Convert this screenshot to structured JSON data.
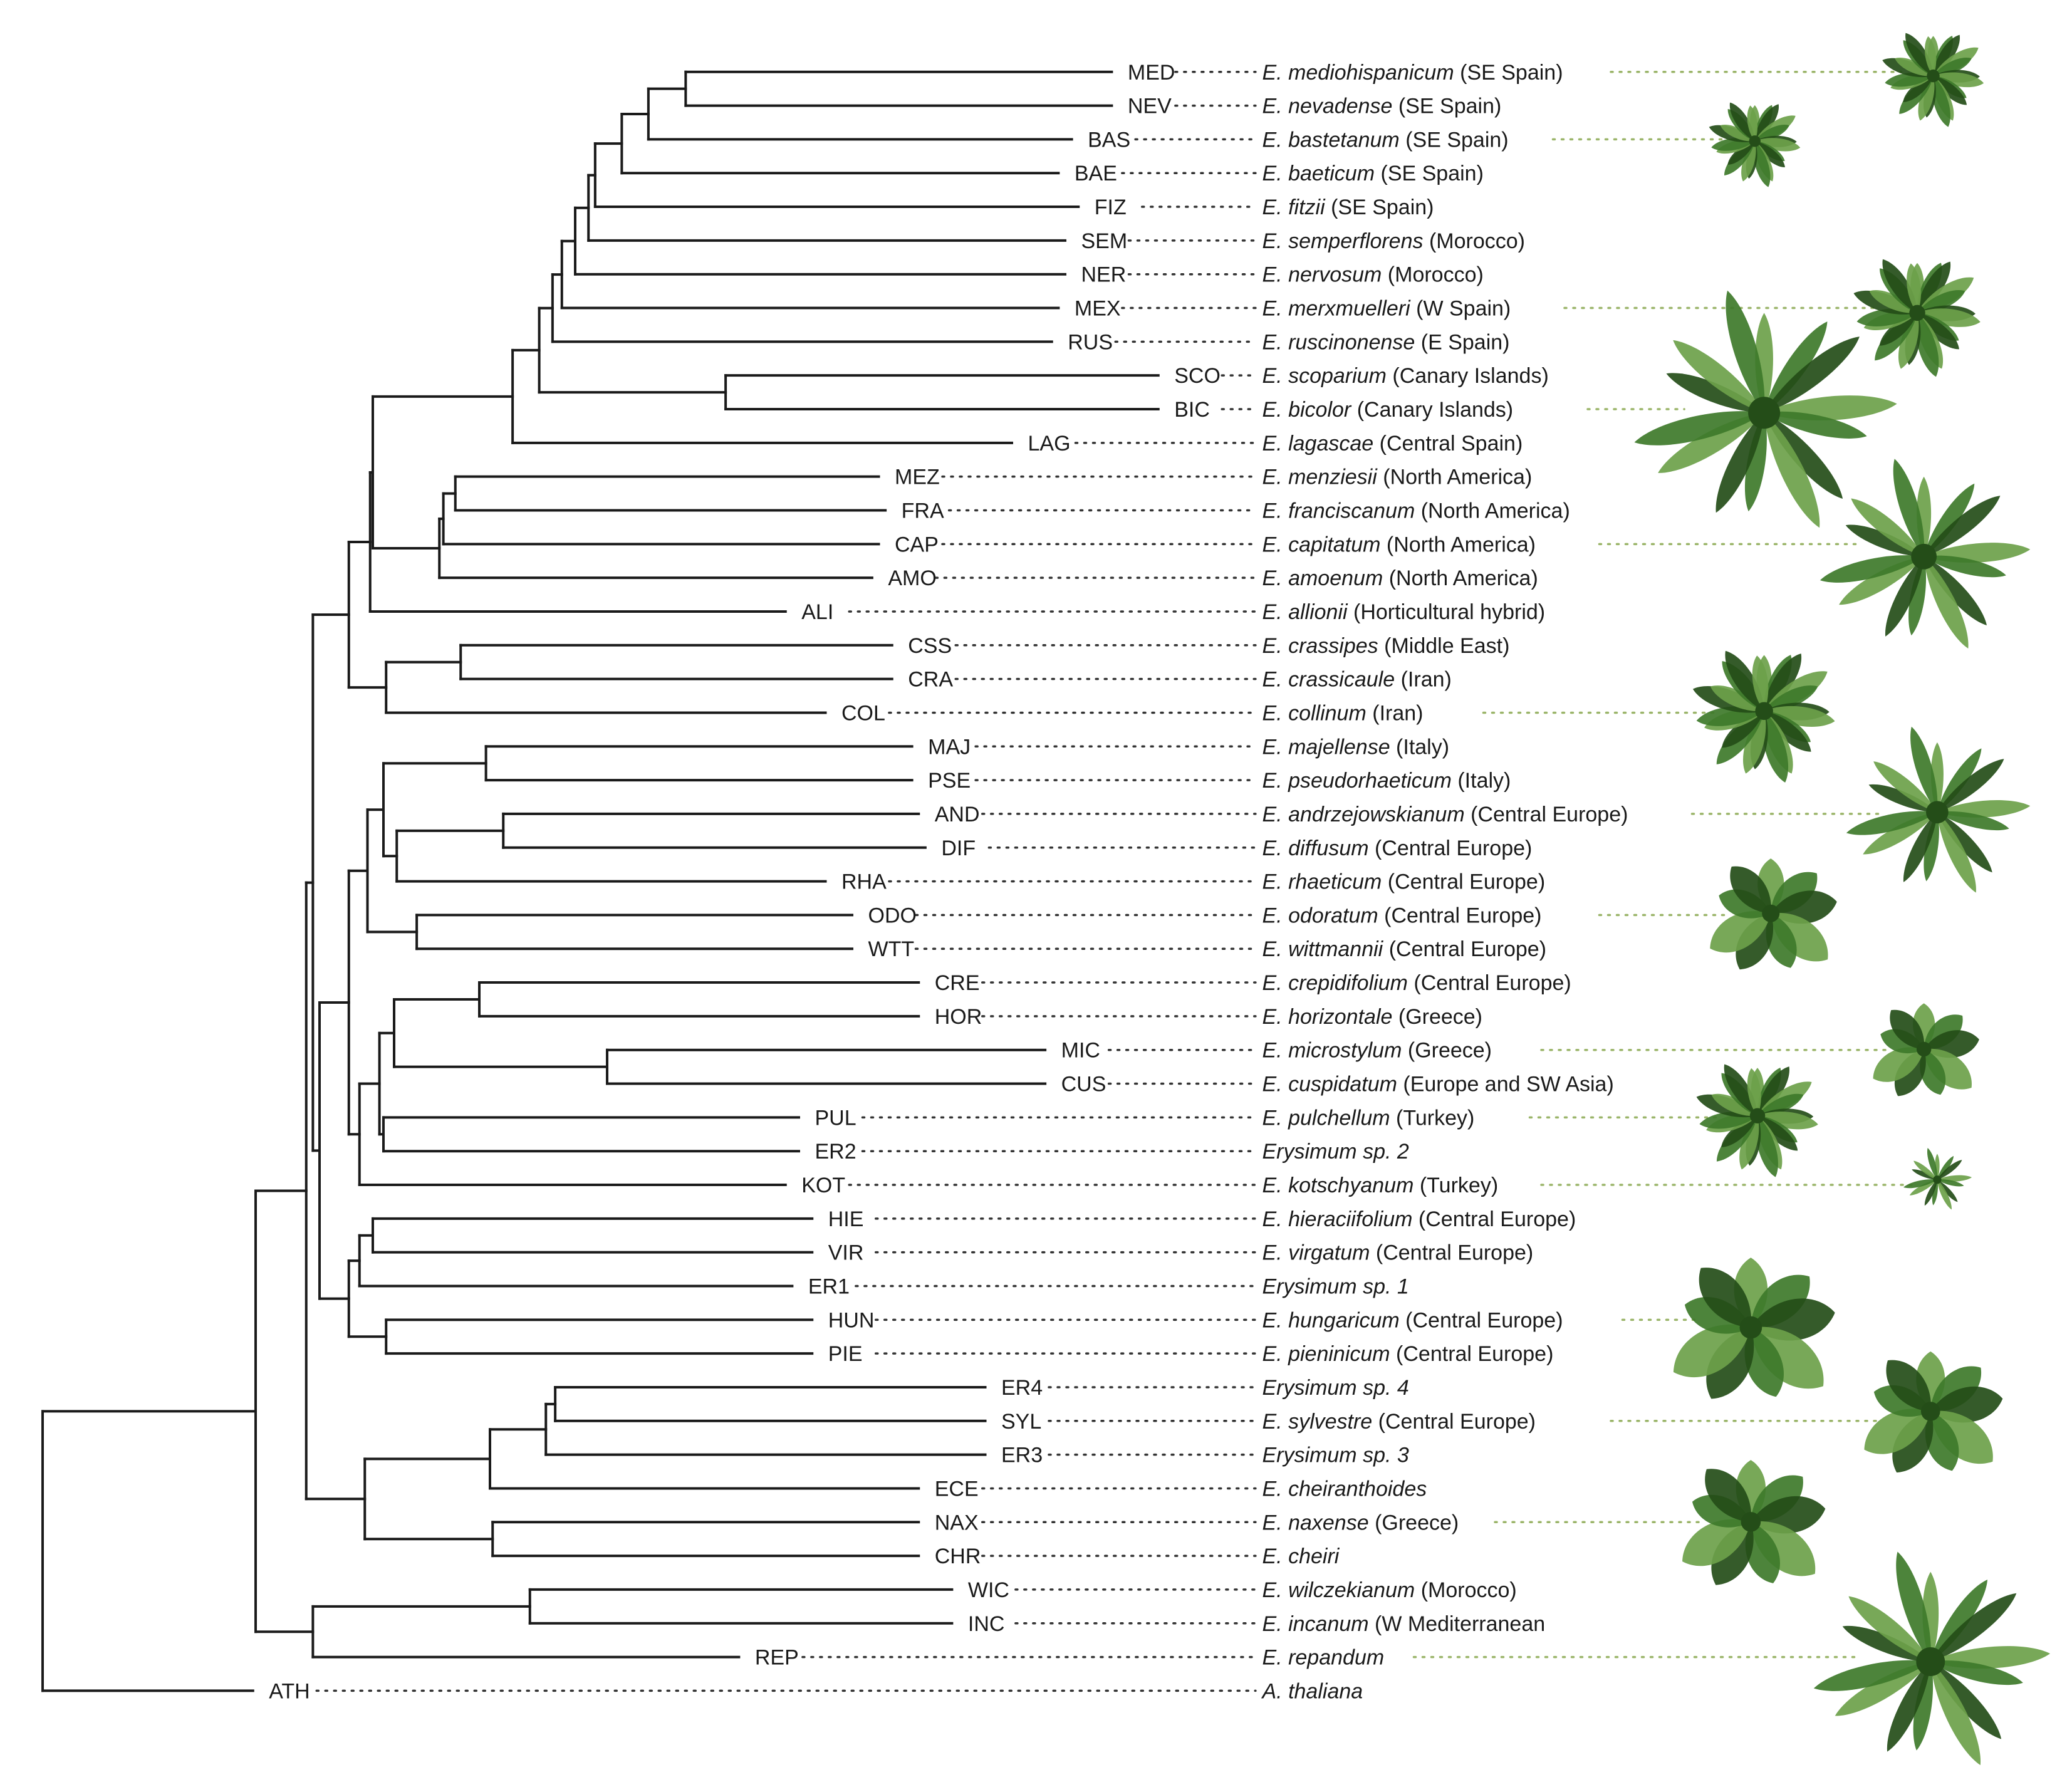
{
  "taxa": [
    {
      "code": "MED",
      "genus": "E.",
      "epithet": "mediohispanicum",
      "region": "(SE Spain)"
    },
    {
      "code": "NEV",
      "genus": "E.",
      "epithet": "nevadense",
      "region": "(SE Spain)"
    },
    {
      "code": "BAS",
      "genus": "E.",
      "epithet": "bastetanum",
      "region": "(SE Spain)"
    },
    {
      "code": "BAE",
      "genus": "E.",
      "epithet": "baeticum",
      "region": "(SE Spain)"
    },
    {
      "code": "FIZ",
      "genus": "E.",
      "epithet": "fitzii",
      "region": "(SE Spain)"
    },
    {
      "code": "SEM",
      "genus": "E.",
      "epithet": "semperflorens",
      "region": "(Morocco)"
    },
    {
      "code": "NER",
      "genus": "E.",
      "epithet": "nervosum",
      "region": "(Morocco)"
    },
    {
      "code": "MEX",
      "genus": "E.",
      "epithet": "merxmuelleri",
      "region": "(W Spain)"
    },
    {
      "code": "RUS",
      "genus": "E.",
      "epithet": "ruscinonense",
      "region": "(E Spain)"
    },
    {
      "code": "SCO",
      "genus": "E.",
      "epithet": "scoparium",
      "region": "(Canary Islands)"
    },
    {
      "code": "BIC",
      "genus": "E.",
      "epithet": "bicolor",
      "region": "(Canary Islands)"
    },
    {
      "code": "LAG",
      "genus": "E.",
      "epithet": "lagascae",
      "region": "(Central Spain)"
    },
    {
      "code": "MEZ",
      "genus": "E.",
      "epithet": "menziesii",
      "region": "(North America)"
    },
    {
      "code": "FRA",
      "genus": "E.",
      "epithet": "franciscanum",
      "region": "(North America)"
    },
    {
      "code": "CAP",
      "genus": "E.",
      "epithet": "capitatum",
      "region": "(North America)"
    },
    {
      "code": "AMO",
      "genus": "E.",
      "epithet": "amoenum",
      "region": "(North America)"
    },
    {
      "code": "ALI",
      "genus": "E.",
      "epithet": "allionii",
      "region": "(Horticultural hybrid)"
    },
    {
      "code": "CSS",
      "genus": "E.",
      "epithet": "crassipes",
      "region": "(Middle East)"
    },
    {
      "code": "CRA",
      "genus": "E.",
      "epithet": "crassicaule",
      "region": "(Iran)"
    },
    {
      "code": "COL",
      "genus": "E.",
      "epithet": "collinum",
      "region": "(Iran)"
    },
    {
      "code": "MAJ",
      "genus": "E.",
      "epithet": "majellense",
      "region": "(Italy)"
    },
    {
      "code": "PSE",
      "genus": "E.",
      "epithet": "pseudorhaeticum",
      "region": "(Italy)"
    },
    {
      "code": "AND",
      "genus": "E.",
      "epithet": "andrzejowskianum",
      "region": "(Central Europe)"
    },
    {
      "code": "DIF",
      "genus": "E.",
      "epithet": "diffusum",
      "region": "(Central Europe)"
    },
    {
      "code": "RHA",
      "genus": "E.",
      "epithet": "rhaeticum",
      "region": "(Central Europe)"
    },
    {
      "code": "ODO",
      "genus": "E.",
      "epithet": "odoratum",
      "region": "(Central Europe)"
    },
    {
      "code": "WTT",
      "genus": "E.",
      "epithet": "wittmannii",
      "region": "(Central Europe)"
    },
    {
      "code": "CRE",
      "genus": "E.",
      "epithet": "crepidifolium",
      "region": "(Central Europe)"
    },
    {
      "code": "HOR",
      "genus": "E.",
      "epithet": "horizontale",
      "region": "(Greece)"
    },
    {
      "code": "MIC",
      "genus": "E.",
      "epithet": "microstylum",
      "region": "(Greece)"
    },
    {
      "code": "CUS",
      "genus": "E.",
      "epithet": "cuspidatum",
      "region": "(Europe and SW Asia)"
    },
    {
      "code": "PUL",
      "genus": "E.",
      "epithet": "pulchellum",
      "region": "(Turkey)"
    },
    {
      "code": "ER2",
      "genus": "Erysimum",
      "epithet": "sp. 2",
      "region": ""
    },
    {
      "code": "KOT",
      "genus": "E.",
      "epithet": "kotschyanum",
      "region": "(Turkey)"
    },
    {
      "code": "HIE",
      "genus": "E.",
      "epithet": "hieraciifolium",
      "region": "(Central Europe)"
    },
    {
      "code": "VIR",
      "genus": "E.",
      "epithet": "virgatum",
      "region": "(Central Europe)"
    },
    {
      "code": "ER1",
      "genus": "Erysimum",
      "epithet": "sp. 1",
      "region": ""
    },
    {
      "code": "HUN",
      "genus": "E.",
      "epithet": "hungaricum",
      "region": "(Central Europe)"
    },
    {
      "code": "PIE",
      "genus": "E.",
      "epithet": "pieninicum",
      "region": "(Central Europe)"
    },
    {
      "code": "ER4",
      "genus": "Erysimum",
      "epithet": "sp. 4",
      "region": ""
    },
    {
      "code": "SYL",
      "genus": "E.",
      "epithet": "sylvestre",
      "region": "(Central Europe)"
    },
    {
      "code": "ER3",
      "genus": "Erysimum",
      "epithet": "sp. 3",
      "region": ""
    },
    {
      "code": "ECE",
      "genus": "E.",
      "epithet": "cheiranthoides",
      "region": ""
    },
    {
      "code": "NAX",
      "genus": "E.",
      "epithet": "naxense",
      "region": "(Greece)"
    },
    {
      "code": "CHR",
      "genus": "E.",
      "epithet": "cheiri",
      "region": ""
    },
    {
      "code": "WIC",
      "genus": "E.",
      "epithet": "wilczekianum",
      "region": "(Morocco)"
    },
    {
      "code": "INC",
      "genus": "E.",
      "epithet": "incanum",
      "region": "(W Mediterranean"
    },
    {
      "code": "REP",
      "genus": "E.",
      "epithet": "repandum",
      "region": ""
    },
    {
      "code": "ATH",
      "genus": "A.",
      "epithet": "thaliana",
      "region": ""
    }
  ],
  "colors": {
    "branch": "#1a1a1a",
    "leader": "#333333",
    "photo_leader": "#9bb56a",
    "leaf": "#3e7a2a",
    "leaf_light": "#6da14a",
    "leaf_dark": "#244d18"
  },
  "photos": [
    {
      "taxon": "MED",
      "icon": "plant-rosette-icon"
    },
    {
      "taxon": "BAS",
      "icon": "plant-rosette-icon"
    },
    {
      "taxon": "MEX",
      "icon": "plant-rosette-icon"
    },
    {
      "taxon": "BIC",
      "icon": "plant-rosette-icon"
    },
    {
      "taxon": "CAP",
      "icon": "plant-rosette-icon"
    },
    {
      "taxon": "COL",
      "icon": "plant-rosette-icon"
    },
    {
      "taxon": "AND",
      "icon": "plant-rosette-icon"
    },
    {
      "taxon": "ODO",
      "icon": "plant-rosette-icon"
    },
    {
      "taxon": "MIC",
      "icon": "plant-rosette-icon"
    },
    {
      "taxon": "PUL",
      "icon": "plant-rosette-icon"
    },
    {
      "taxon": "KOT",
      "icon": "plant-rosette-icon"
    },
    {
      "taxon": "HUN",
      "icon": "plant-rosette-icon"
    },
    {
      "taxon": "SYL",
      "icon": "plant-rosette-icon"
    },
    {
      "taxon": "NAX",
      "icon": "plant-rosette-icon"
    },
    {
      "taxon": "REP",
      "icon": "plant-rosette-icon"
    }
  ]
}
